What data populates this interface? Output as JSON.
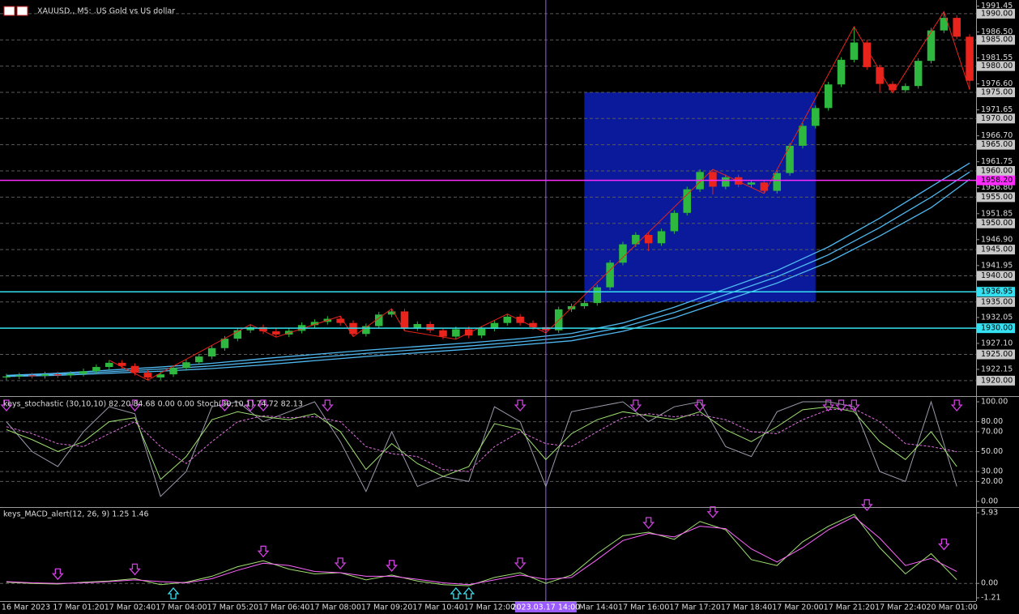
{
  "chart_data": [
    {
      "type": "candlestick",
      "title": "XAUUSD., M5: .US Gold vs US dollar",
      "categories": [
        "16 Mar 2023",
        null,
        null,
        null,
        "17 Mar 01:20",
        null,
        null,
        null,
        "17 Mar 02:40",
        null,
        null,
        null,
        "17 Mar 04:00",
        null,
        null,
        null,
        "17 Mar 05:20",
        null,
        null,
        null,
        "17 Mar 06:40",
        null,
        null,
        null,
        "17 Mar 08:00",
        null,
        null,
        null,
        "17 Mar 09:20",
        null,
        null,
        null,
        "17 Mar 10:40",
        null,
        null,
        null,
        "17 Mar 12:00",
        null,
        null,
        null,
        null,
        null,
        null,
        null,
        "17 Mar 14:40",
        null,
        null,
        null,
        "17 Mar 16:00",
        null,
        null,
        null,
        "17 Mar 17:20",
        null,
        null,
        null,
        "17 Mar 18:40",
        null,
        null,
        null,
        "17 Mar 20:00",
        null,
        null,
        null,
        "17 Mar 21:20",
        null,
        null,
        null,
        "17 Mar 22:40",
        null,
        null,
        null,
        "20 Mar 01:00",
        null,
        null,
        null
      ],
      "open": [
        1920.6,
        1920.8,
        1921.0,
        1920.9,
        1921.2,
        1921.0,
        1921.3,
        1921.8,
        1922.6,
        1923.4,
        1922.8,
        1921.5,
        1920.6,
        1921.2,
        1922.4,
        1923.5,
        1924.6,
        1926.2,
        1928.0,
        1929.6,
        1930.2,
        1929.4,
        1928.8,
        1929.5,
        1930.6,
        1931.2,
        1931.8,
        1931.0,
        1928.9,
        1930.4,
        1932.6,
        1933.2,
        1930.0,
        1930.8,
        1929.6,
        1928.4,
        1929.8,
        1928.6,
        1929.9,
        1931.0,
        1932.2,
        1931.0,
        1930.2,
        1929.6,
        1933.6,
        1934.2,
        1934.8,
        1937.8,
        1942.5,
        1946.0,
        1947.8,
        1946.2,
        1948.5,
        1952.0,
        1956.5,
        1959.8,
        1957.0,
        1958.8,
        1957.4,
        1957.8,
        1956.2,
        1959.6,
        1964.8,
        1968.6,
        1972.0,
        1976.5,
        1981.2,
        1984.5,
        1979.8,
        1976.6,
        1975.4,
        1976.2,
        1981.0,
        1986.8,
        1989.2,
        1985.6
      ],
      "high": [
        1921.3,
        1921.5,
        1921.5,
        1921.7,
        1921.7,
        1921.8,
        1922.3,
        1923.1,
        1923.9,
        1923.9,
        1923.3,
        1922.0,
        1921.7,
        1922.9,
        1924.0,
        1925.1,
        1926.7,
        1928.5,
        1930.1,
        1930.7,
        1930.7,
        1929.9,
        1930.0,
        1931.1,
        1931.7,
        1932.3,
        1932.3,
        1931.5,
        1930.9,
        1933.1,
        1933.7,
        1933.7,
        1931.3,
        1931.3,
        1930.1,
        1930.3,
        1930.3,
        1930.4,
        1931.5,
        1932.7,
        1932.7,
        1931.5,
        1930.7,
        1934.1,
        1934.7,
        1935.3,
        1938.3,
        1943.0,
        1946.5,
        1948.3,
        1948.3,
        1949.0,
        1952.5,
        1957.0,
        1960.3,
        1960.3,
        1959.3,
        1959.3,
        1958.3,
        1958.3,
        1960.1,
        1965.3,
        1969.1,
        1972.5,
        1977.0,
        1981.7,
        1987.5,
        1985.0,
        1980.3,
        1977.1,
        1976.7,
        1981.5,
        1987.3,
        1990.4,
        1989.7,
        1986.1
      ],
      "low": [
        1920.1,
        1920.3,
        1920.4,
        1920.4,
        1920.5,
        1920.5,
        1920.8,
        1921.3,
        1922.1,
        1922.3,
        1921.0,
        1920.1,
        1920.1,
        1920.7,
        1921.9,
        1923.0,
        1924.1,
        1925.7,
        1927.5,
        1929.1,
        1928.9,
        1928.3,
        1928.3,
        1929.0,
        1930.1,
        1930.7,
        1930.5,
        1928.4,
        1928.4,
        1929.9,
        1932.1,
        1929.5,
        1929.5,
        1929.1,
        1927.9,
        1927.9,
        1928.1,
        1928.1,
        1929.4,
        1930.5,
        1930.5,
        1929.7,
        1929.1,
        1929.1,
        1933.1,
        1933.7,
        1934.3,
        1937.3,
        1942.0,
        1945.5,
        1944.7,
        1945.7,
        1948.0,
        1951.5,
        1956.0,
        1955.5,
        1956.5,
        1956.9,
        1956.9,
        1955.7,
        1955.7,
        1959.1,
        1964.3,
        1968.1,
        1971.5,
        1976.0,
        1980.7,
        1979.3,
        1975.1,
        1974.9,
        1974.9,
        1975.7,
        1980.5,
        1986.3,
        1985.1,
        1975.5
      ],
      "close": [
        1920.8,
        1921.0,
        1920.9,
        1921.2,
        1921.0,
        1921.3,
        1921.8,
        1922.6,
        1923.4,
        1922.8,
        1921.5,
        1920.6,
        1921.2,
        1922.4,
        1923.5,
        1924.6,
        1926.2,
        1928.0,
        1929.6,
        1930.2,
        1929.4,
        1928.8,
        1929.5,
        1930.6,
        1931.2,
        1931.8,
        1931.0,
        1928.9,
        1930.4,
        1932.6,
        1933.2,
        1930.0,
        1930.8,
        1929.6,
        1928.4,
        1929.8,
        1928.6,
        1929.9,
        1931.0,
        1932.2,
        1931.0,
        1930.2,
        1929.6,
        1933.6,
        1934.2,
        1934.8,
        1937.8,
        1942.5,
        1946.0,
        1947.8,
        1946.2,
        1948.5,
        1952.0,
        1956.5,
        1959.8,
        1957.0,
        1958.8,
        1957.4,
        1957.8,
        1956.2,
        1959.6,
        1964.8,
        1968.6,
        1972.0,
        1976.5,
        1981.2,
        1984.5,
        1979.8,
        1976.6,
        1975.4,
        1976.2,
        1981.0,
        1986.8,
        1989.2,
        1985.6,
        1977.2
      ],
      "up_color": "#2fb83f",
      "down_color": "#e8241c",
      "ylim": [
        1917.2,
        1992.3
      ],
      "yticks": [
        {
          "value": 1991.45,
          "label": "1991.45"
        },
        {
          "value": 1986.5,
          "label": "1986.50"
        },
        {
          "value": 1981.55,
          "label": "1981.55"
        },
        {
          "value": 1976.6,
          "label": "1976.60"
        },
        {
          "value": 1971.65,
          "label": "1971.65"
        },
        {
          "value": 1966.7,
          "label": "1966.70"
        },
        {
          "value": 1961.75,
          "label": "1961.75"
        },
        {
          "value": 1956.8,
          "label": "1956.80"
        },
        {
          "value": 1951.85,
          "label": "1951.85"
        },
        {
          "value": 1946.9,
          "label": "1946.90"
        },
        {
          "value": 1941.95,
          "label": "1941.95"
        },
        {
          "value": 1932.05,
          "label": "1932.05"
        },
        {
          "value": 1927.1,
          "label": "1927.10"
        },
        {
          "value": 1922.15,
          "label": "1922.15"
        }
      ],
      "ygrid_ticks": [
        {
          "value": 1990,
          "label": "1990.00"
        },
        {
          "value": 1985,
          "label": "1985.00"
        },
        {
          "value": 1980,
          "label": "1980.00"
        },
        {
          "value": 1975,
          "label": "1975.00"
        },
        {
          "value": 1970,
          "label": "1970.00"
        },
        {
          "value": 1965,
          "label": "1965.00"
        },
        {
          "value": 1960,
          "label": "1960.00"
        },
        {
          "value": 1955,
          "label": "1955.00"
        },
        {
          "value": 1950,
          "label": "1950.00"
        },
        {
          "value": 1945,
          "label": "1945.00"
        },
        {
          "value": 1940,
          "label": "1940.00"
        },
        {
          "value": 1935,
          "label": "1935.00"
        },
        {
          "value": 1925,
          "label": "1925.00"
        },
        {
          "value": 1920,
          "label": "1920.00"
        }
      ],
      "hlines": [
        {
          "value": 1958.2,
          "label": "1958.20",
          "color": "#ff2bff"
        },
        {
          "value": 1936.95,
          "label": "1936.95",
          "color": "#35e0f0"
        },
        {
          "value": 1930,
          "label": "1930.00",
          "color": "#35e0f0"
        }
      ],
      "rectangle": {
        "x": [
          45,
          63
        ],
        "y": [
          1935,
          1975
        ],
        "color": "#0a1a9a"
      },
      "moving_averages": {
        "x": [
          0,
          4,
          8,
          12,
          16,
          20,
          24,
          28,
          32,
          36,
          40,
          44,
          48,
          52,
          56,
          60,
          64,
          68,
          72,
          75
        ],
        "series": [
          {
            "color": "#4fb8f0",
            "values": [
              1921.0,
              1921.4,
              1922.0,
              1922.6,
              1923.3,
              1924.2,
              1925.0,
              1925.8,
              1926.5,
              1927.2,
              1928.0,
              1929.0,
              1931.0,
              1934.0,
              1937.5,
              1941.0,
              1945.5,
              1951.0,
              1957.0,
              1961.5
            ]
          },
          {
            "color": "#4fb8f0",
            "values": [
              1920.9,
              1921.2,
              1921.7,
              1922.2,
              1922.8,
              1923.6,
              1924.4,
              1925.2,
              1925.9,
              1926.6,
              1927.4,
              1928.3,
              1930.2,
              1933.0,
              1936.4,
              1939.8,
              1944.0,
              1949.2,
              1955.0,
              1959.8
            ]
          },
          {
            "color": "#4fb8f0",
            "values": [
              1920.8,
              1921.0,
              1921.4,
              1921.8,
              1922.3,
              1923.0,
              1923.8,
              1924.6,
              1925.3,
              1926.0,
              1926.8,
              1927.6,
              1929.4,
              1932.0,
              1935.3,
              1938.6,
              1942.6,
              1947.6,
              1953.0,
              1958.4
            ]
          }
        ]
      },
      "zigzag": {
        "color": "#e8241c",
        "x": [
          8,
          11,
          19,
          21,
          26,
          27,
          30,
          31,
          35,
          39,
          42,
          55,
          59,
          66,
          69,
          73,
          75
        ],
        "values": [
          1923.9,
          1920.1,
          1930.7,
          1928.3,
          1932.3,
          1928.4,
          1933.7,
          1929.5,
          1927.9,
          1932.7,
          1929.1,
          1960.3,
          1955.7,
          1987.5,
          1974.9,
          1990.4,
          1975.5
        ]
      },
      "crosshair": {
        "x": 42,
        "label": "2023.03.17 14:00",
        "color": "#9a5cff"
      }
    },
    {
      "type": "line",
      "title": "keys_stochastic (30,10,10) 82.20 84.68 0.00 0.00 Stoch(30,10,1) 74.72 82.13",
      "x": [
        0,
        2,
        4,
        6,
        8,
        10,
        12,
        14,
        16,
        18,
        20,
        22,
        24,
        26,
        28,
        30,
        32,
        34,
        36,
        38,
        40,
        42,
        44,
        46,
        48,
        50,
        52,
        54,
        56,
        58,
        60,
        62,
        64,
        66,
        68,
        70,
        72,
        74
      ],
      "series": [
        {
          "color": "#9a9aaa",
          "values": [
            80,
            50,
            35,
            70,
            95,
            88,
            5,
            30,
            95,
            100,
            80,
            90,
            100,
            60,
            10,
            70,
            15,
            25,
            20,
            95,
            80,
            15,
            90,
            95,
            100,
            80,
            95,
            100,
            55,
            45,
            90,
            100,
            100,
            95,
            30,
            20,
            100,
            15
          ]
        },
        {
          "color": "#9fe070",
          "values": [
            72,
            62,
            50,
            60,
            80,
            84,
            22,
            45,
            82,
            90,
            85,
            82,
            88,
            70,
            32,
            58,
            38,
            25,
            35,
            78,
            72,
            42,
            68,
            82,
            90,
            86,
            82,
            90,
            72,
            60,
            75,
            92,
            95,
            90,
            60,
            42,
            70,
            35
          ]
        },
        {
          "color": "#e070e0",
          "dashed": true,
          "values": [
            75,
            68,
            58,
            55,
            68,
            80,
            55,
            38,
            60,
            80,
            86,
            84,
            85,
            80,
            55,
            48,
            45,
            32,
            30,
            55,
            70,
            58,
            55,
            70,
            84,
            88,
            85,
            87,
            82,
            70,
            68,
            82,
            92,
            93,
            80,
            58,
            55,
            50
          ]
        }
      ],
      "ylim": [
        -4.9,
        104.9
      ],
      "yticks": [
        {
          "value": 100,
          "label": "100.00"
        },
        {
          "value": 80,
          "label": "80.00"
        },
        {
          "value": 70,
          "label": "70.00"
        },
        {
          "value": 50,
          "label": "50.00"
        },
        {
          "value": 30,
          "label": "30.00"
        },
        {
          "value": 20,
          "label": "20.00"
        },
        {
          "value": 0,
          "label": "0.00"
        }
      ],
      "down_arrows": [
        0,
        10,
        17,
        19,
        20,
        25,
        40,
        49,
        54,
        64,
        65,
        66,
        74
      ],
      "arrow_color": "#d040e0"
    },
    {
      "type": "line",
      "title": "keys_MACD_alert(12, 26, 9) 1.25 1.46",
      "x": [
        0,
        2,
        4,
        6,
        8,
        10,
        12,
        14,
        16,
        18,
        20,
        22,
        24,
        26,
        28,
        30,
        32,
        34,
        36,
        38,
        40,
        42,
        44,
        46,
        48,
        50,
        52,
        54,
        56,
        58,
        60,
        62,
        64,
        66,
        68,
        70,
        72,
        74
      ],
      "series": [
        {
          "color": "#9fe070",
          "values": [
            0.1,
            0.0,
            -0.05,
            0.1,
            0.2,
            0.4,
            -0.1,
            0.1,
            0.6,
            1.4,
            1.9,
            1.2,
            0.8,
            0.9,
            0.3,
            0.7,
            0.2,
            -0.1,
            -0.2,
            0.5,
            0.9,
            0.0,
            0.7,
            2.5,
            4.0,
            4.3,
            3.7,
            5.2,
            4.5,
            2.0,
            1.5,
            3.5,
            4.8,
            5.8,
            3.0,
            0.8,
            2.5,
            0.3
          ]
        },
        {
          "color": "#ff66ff",
          "values": [
            0.15,
            0.05,
            0.0,
            0.05,
            0.15,
            0.3,
            0.15,
            0.05,
            0.4,
            1.1,
            1.7,
            1.5,
            1.0,
            0.9,
            0.6,
            0.6,
            0.35,
            0.05,
            -0.1,
            0.3,
            0.7,
            0.35,
            0.5,
            2.0,
            3.6,
            4.2,
            3.9,
            4.8,
            4.6,
            2.9,
            1.8,
            3.0,
            4.5,
            5.6,
            3.8,
            1.5,
            2.1,
            1.0
          ]
        }
      ],
      "ylim": [
        -1.48,
        6.34
      ],
      "yticks": [
        {
          "value": 5.93,
          "label": "5.93"
        },
        {
          "value": 0,
          "label": "0.00"
        },
        {
          "value": -1.21,
          "label": "-1.21"
        }
      ],
      "down_arrows": [
        4,
        10,
        20,
        26,
        30,
        40,
        50,
        55,
        67,
        73
      ],
      "up_arrows": [
        13,
        35,
        36
      ],
      "arrow_color": "#d040e0",
      "up_arrow_color": "#35e0f0"
    }
  ]
}
